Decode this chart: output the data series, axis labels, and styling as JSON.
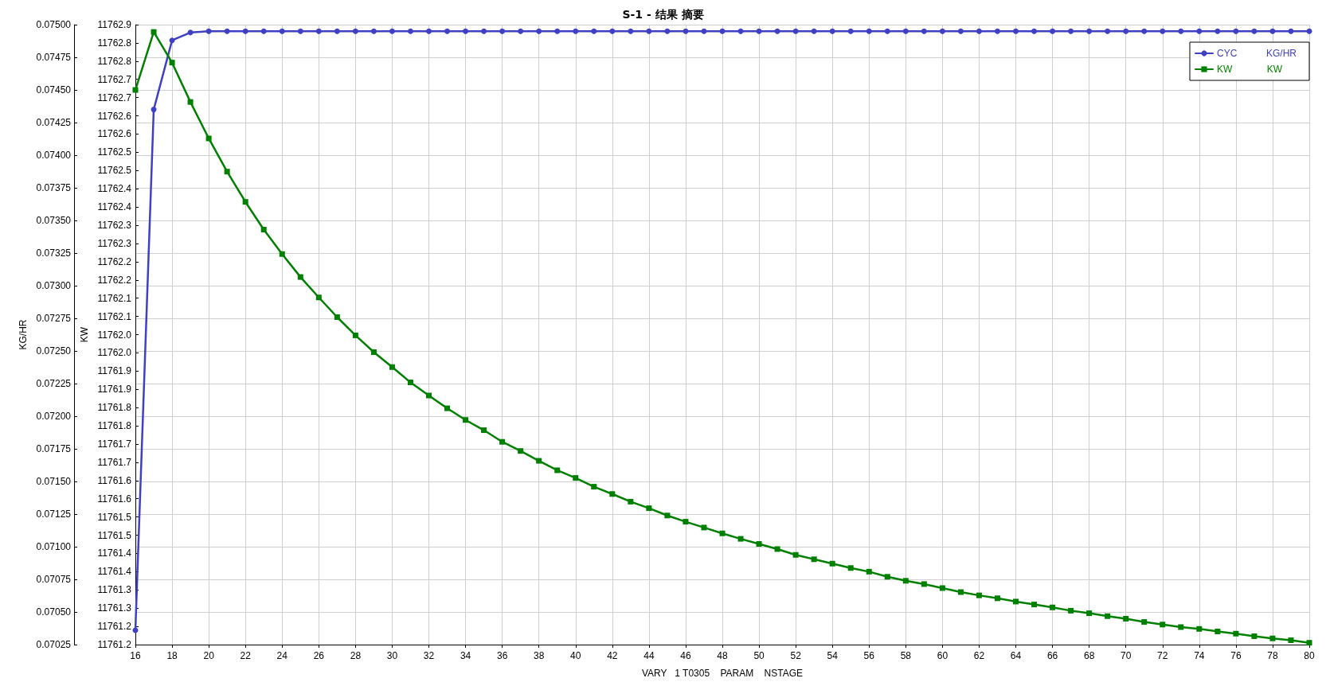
{
  "chart_data": {
    "type": "line",
    "title": "S-1 - 结果 摘要",
    "xlabel": "VARY   1 T0305    PARAM    NSTAGE",
    "ylabel": "KG/HR",
    "y2label": "KW",
    "x": [
      16,
      17,
      18,
      19,
      20,
      21,
      22,
      23,
      24,
      25,
      26,
      27,
      28,
      29,
      30,
      31,
      32,
      33,
      34,
      35,
      36,
      37,
      38,
      39,
      40,
      41,
      42,
      43,
      44,
      45,
      46,
      47,
      48,
      49,
      50,
      51,
      52,
      53,
      54,
      55,
      56,
      57,
      58,
      59,
      60,
      61,
      62,
      63,
      64,
      65,
      66,
      67,
      68,
      69,
      70,
      71,
      72,
      73,
      74,
      75,
      76,
      77,
      78,
      79,
      80
    ],
    "xlim": [
      16,
      80
    ],
    "xticks": [
      16,
      18,
      20,
      22,
      24,
      26,
      28,
      30,
      32,
      34,
      36,
      38,
      40,
      42,
      44,
      46,
      48,
      50,
      52,
      54,
      56,
      58,
      60,
      62,
      64,
      66,
      68,
      70,
      72,
      74,
      76,
      78,
      80
    ],
    "ylim": [
      0.07025,
      0.075
    ],
    "yticks": [
      {
        "value": 0.07025,
        "label": "0.07025"
      },
      {
        "value": 0.0705,
        "label": "0.07050"
      },
      {
        "value": 0.07075,
        "label": "0.07075"
      },
      {
        "value": 0.071,
        "label": "0.07100"
      },
      {
        "value": 0.07125,
        "label": "0.07125"
      },
      {
        "value": 0.0715,
        "label": "0.07150"
      },
      {
        "value": 0.07175,
        "label": "0.07175"
      },
      {
        "value": 0.072,
        "label": "0.07200"
      },
      {
        "value": 0.07225,
        "label": "0.07225"
      },
      {
        "value": 0.0725,
        "label": "0.07250"
      },
      {
        "value": 0.07275,
        "label": "0.07275"
      },
      {
        "value": 0.073,
        "label": "0.07300"
      },
      {
        "value": 0.07325,
        "label": "0.07325"
      },
      {
        "value": 0.0735,
        "label": "0.07350"
      },
      {
        "value": 0.07375,
        "label": "0.07375"
      },
      {
        "value": 0.074,
        "label": "0.07400"
      },
      {
        "value": 0.07425,
        "label": "0.07425"
      },
      {
        "value": 0.0745,
        "label": "0.07450"
      },
      {
        "value": 0.07475,
        "label": "0.07475"
      },
      {
        "value": 0.075,
        "label": "0.07500"
      }
    ],
    "y2lim": [
      11761.2,
      11762.9
    ],
    "y2ticks": [
      {
        "value": 11761.2,
        "label": "11761.2"
      },
      {
        "value": 11761.25,
        "label": "11761.2"
      },
      {
        "value": 11761.3,
        "label": "11761.3"
      },
      {
        "value": 11761.35,
        "label": "11761.3"
      },
      {
        "value": 11761.4,
        "label": "11761.4"
      },
      {
        "value": 11761.45,
        "label": "11761.4"
      },
      {
        "value": 11761.5,
        "label": "11761.5"
      },
      {
        "value": 11761.55,
        "label": "11761.5"
      },
      {
        "value": 11761.6,
        "label": "11761.6"
      },
      {
        "value": 11761.65,
        "label": "11761.6"
      },
      {
        "value": 11761.7,
        "label": "11761.7"
      },
      {
        "value": 11761.75,
        "label": "11761.7"
      },
      {
        "value": 11761.8,
        "label": "11761.8"
      },
      {
        "value": 11761.85,
        "label": "11761.8"
      },
      {
        "value": 11761.9,
        "label": "11761.9"
      },
      {
        "value": 11761.95,
        "label": "11761.9"
      },
      {
        "value": 11762.0,
        "label": "11762.0"
      },
      {
        "value": 11762.05,
        "label": "11762.0"
      },
      {
        "value": 11762.1,
        "label": "11762.1"
      },
      {
        "value": 11762.15,
        "label": "11762.1"
      },
      {
        "value": 11762.2,
        "label": "11762.2"
      },
      {
        "value": 11762.25,
        "label": "11762.2"
      },
      {
        "value": 11762.3,
        "label": "11762.3"
      },
      {
        "value": 11762.35,
        "label": "11762.3"
      },
      {
        "value": 11762.4,
        "label": "11762.4"
      },
      {
        "value": 11762.45,
        "label": "11762.4"
      },
      {
        "value": 11762.5,
        "label": "11762.5"
      },
      {
        "value": 11762.55,
        "label": "11762.5"
      },
      {
        "value": 11762.6,
        "label": "11762.6"
      },
      {
        "value": 11762.65,
        "label": "11762.6"
      },
      {
        "value": 11762.7,
        "label": "11762.7"
      },
      {
        "value": 11762.75,
        "label": "11762.7"
      },
      {
        "value": 11762.8,
        "label": "11762.8"
      },
      {
        "value": 11762.85,
        "label": "11762.8"
      },
      {
        "value": 11762.9,
        "label": "11762.9"
      }
    ],
    "grid": true,
    "legend": "top right",
    "line_style": "solid",
    "series": [
      {
        "name": "CYC KG/HR",
        "color": "#4040c4",
        "marker": "circle",
        "values": [
          0.07036,
          0.07435,
          0.07488,
          0.07494,
          0.07495,
          0.07495,
          0.07495,
          0.07495,
          0.07495,
          0.07495,
          0.07495,
          0.07495,
          0.07495,
          0.07495,
          0.07495,
          0.07495,
          0.07495,
          0.07495,
          0.07495,
          0.07495,
          0.07495,
          0.07495,
          0.07495,
          0.07495,
          0.07495,
          0.07495,
          0.07495,
          0.07495,
          0.07495,
          0.07495,
          0.07495,
          0.07495,
          0.07495,
          0.07495,
          0.07495,
          0.07495,
          0.07495,
          0.07495,
          0.07495,
          0.07495,
          0.07495,
          0.07495,
          0.07495,
          0.07495,
          0.07495,
          0.07495,
          0.07495,
          0.07495,
          0.07495,
          0.07495,
          0.07495,
          0.07495,
          0.07495,
          0.07495,
          0.07495,
          0.07495,
          0.07495,
          0.07495,
          0.07495,
          0.07495,
          0.07495,
          0.07495,
          0.07495,
          0.07495,
          0.07495
        ]
      },
      {
        "name": "KW KW",
        "color": "#008000",
        "marker": "square",
        "axis": "y2",
        "values": [
          11762.721,
          11762.88,
          11762.796,
          11762.688,
          11762.588,
          11762.497,
          11762.414,
          11762.338,
          11762.271,
          11762.208,
          11762.152,
          11762.098,
          11762.048,
          11762.002,
          11761.961,
          11761.919,
          11761.883,
          11761.848,
          11761.816,
          11761.788,
          11761.756,
          11761.731,
          11761.704,
          11761.678,
          11761.657,
          11761.633,
          11761.613,
          11761.592,
          11761.574,
          11761.554,
          11761.537,
          11761.521,
          11761.505,
          11761.49,
          11761.476,
          11761.462,
          11761.446,
          11761.434,
          11761.422,
          11761.41,
          11761.4,
          11761.386,
          11761.375,
          11761.366,
          11761.355,
          11761.344,
          11761.335,
          11761.327,
          11761.318,
          11761.31,
          11761.302,
          11761.293,
          11761.286,
          11761.278,
          11761.271,
          11761.262,
          11761.255,
          11761.248,
          11761.243,
          11761.236,
          11761.23,
          11761.223,
          11761.217,
          11761.212,
          11761.205
        ]
      }
    ]
  }
}
